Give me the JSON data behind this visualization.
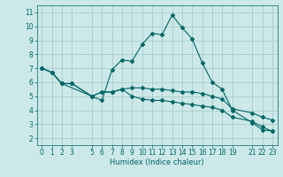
{
  "xlabel": "Humidex (Indice chaleur)",
  "bg_color": "#cce8e8",
  "grid_color": "#aacccc",
  "line_color": "#006666",
  "xlim": [
    -0.5,
    23.5
  ],
  "ylim": [
    1.5,
    11.5
  ],
  "xticks": [
    0,
    1,
    2,
    3,
    5,
    6,
    7,
    8,
    9,
    10,
    11,
    12,
    13,
    14,
    15,
    16,
    17,
    18,
    19,
    21,
    22,
    23
  ],
  "yticks": [
    2,
    3,
    4,
    5,
    6,
    7,
    8,
    9,
    10,
    11
  ],
  "curve1_x": [
    0,
    1,
    2,
    5,
    6,
    7,
    8,
    9,
    10,
    11,
    12,
    13,
    14,
    15,
    16,
    17,
    18,
    19,
    21,
    22,
    23
  ],
  "curve1_y": [
    7.0,
    6.7,
    5.9,
    5.0,
    4.7,
    6.9,
    7.6,
    7.5,
    8.7,
    9.5,
    9.4,
    10.8,
    9.9,
    9.1,
    7.4,
    6.0,
    5.5,
    4.0,
    3.1,
    2.6,
    2.5
  ],
  "curve2_x": [
    0,
    1,
    2,
    3,
    5,
    6,
    7,
    8,
    9,
    10,
    11,
    12,
    13,
    14,
    15,
    16,
    17,
    18,
    19,
    21,
    22,
    23
  ],
  "curve2_y": [
    7.0,
    6.7,
    5.9,
    5.9,
    5.0,
    5.3,
    5.3,
    5.5,
    5.6,
    5.6,
    5.5,
    5.5,
    5.4,
    5.3,
    5.3,
    5.2,
    5.0,
    4.8,
    4.1,
    3.8,
    3.5,
    3.3
  ],
  "curve3_x": [
    0,
    1,
    2,
    3,
    5,
    6,
    7,
    8,
    9,
    10,
    11,
    12,
    13,
    14,
    15,
    16,
    17,
    18,
    19,
    21,
    22,
    23
  ],
  "curve3_y": [
    7.0,
    6.7,
    5.9,
    5.9,
    5.0,
    5.3,
    5.3,
    5.5,
    5.0,
    4.8,
    4.7,
    4.7,
    4.6,
    4.5,
    4.4,
    4.3,
    4.2,
    4.0,
    3.5,
    3.2,
    2.8,
    2.5
  ],
  "tick_fontsize": 5.5,
  "xlabel_fontsize": 6.0,
  "marker_size": 2.0,
  "line_width": 0.8
}
